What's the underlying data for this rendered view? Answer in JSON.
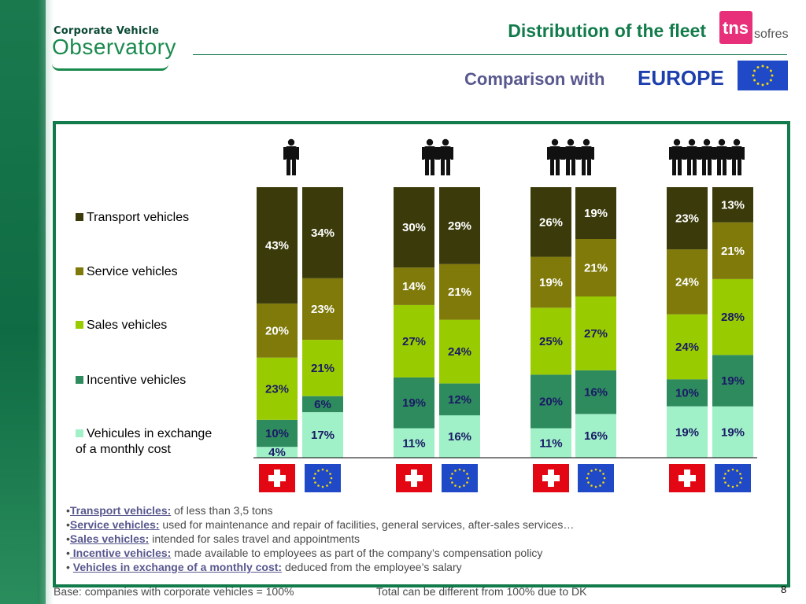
{
  "header": {
    "logo_line1": "Corporate Vehicle",
    "logo_line2": "Observatory",
    "title": "Distribution of the fleet",
    "brand_tns": "tns",
    "brand_sofres": "sofres",
    "comparison_label": "Comparison with",
    "comparison_region": "EUROPE"
  },
  "colors": {
    "transport": "#3a3a0a",
    "service": "#7f7a0a",
    "sales": "#99cc00",
    "incentive": "#2e8b5e",
    "exchange": "#a0f0c8",
    "green": "#127b4b"
  },
  "chart_data": {
    "type": "bar",
    "stacked": true,
    "groups": [
      "1 person icon",
      "2 person icons",
      "3 person icons",
      "5 person icons"
    ],
    "bars_per_group": [
      "Switzerland flag",
      "Europe flag"
    ],
    "series": [
      {
        "name": "Vehicules in exchange of a monthly cost",
        "key": "exchange",
        "values": [
          4,
          17,
          11,
          16,
          11,
          16,
          19,
          19
        ]
      },
      {
        "name": "Incentive vehicles",
        "key": "incentive",
        "values": [
          10,
          6,
          19,
          12,
          20,
          16,
          10,
          19
        ]
      },
      {
        "name": "Sales vehicles",
        "key": "sales",
        "values": [
          23,
          21,
          27,
          24,
          25,
          27,
          24,
          28
        ]
      },
      {
        "name": "Service vehicles",
        "key": "service",
        "values": [
          20,
          23,
          14,
          21,
          19,
          21,
          24,
          21
        ]
      },
      {
        "name": "Transport vehicles",
        "key": "transport",
        "values": [
          43,
          34,
          30,
          29,
          26,
          19,
          23,
          13
        ]
      }
    ],
    "value_labels": [
      [
        "4%",
        "17%",
        "11%",
        "16%",
        "11%",
        "16%",
        "19%",
        "19%"
      ],
      [
        "10%",
        "6%",
        "19%",
        "12%",
        "20%",
        "16%",
        "10%",
        "19%"
      ],
      [
        "23%",
        "21%",
        "27%",
        "24%",
        "25%",
        "27%",
        "24%",
        "28%"
      ],
      [
        "20%",
        "23%",
        "14%",
        "21%",
        "19%",
        "21%",
        "24%",
        "21%"
      ],
      [
        "43%",
        "34%",
        "30%",
        "29%",
        "26%",
        "19%",
        "23%",
        "13%"
      ]
    ],
    "legend_order": [
      "Transport vehicles",
      "Service vehicles",
      "Sales vehicles",
      "Incentive vehicles",
      "Vehicules in exchange of a monthly cost"
    ],
    "legend_placement": "left",
    "ylim": [
      0,
      100
    ],
    "grid": false
  },
  "legend": {
    "transport": "Transport vehicles",
    "service": "Service vehicles",
    "sales": "Sales vehicles",
    "incentive": "Incentive vehicles",
    "exchange_line1": "Vehicules in exchange",
    "exchange_line2": "of a monthly cost"
  },
  "notes": [
    {
      "term": "Transport vehicles:",
      "text": " of less than 3,5 tons",
      "prefix": "•"
    },
    {
      "term": "Service vehicles:",
      "text": " used for maintenance and repair of facilities, general services, after-sales services…",
      "prefix": "•"
    },
    {
      "term": "Sales vehicles:",
      "text": " intended for sales travel and appointments",
      "prefix": "•"
    },
    {
      "term": " Incentive vehicles:",
      "text": " made available to employees as part of the company’s compensation policy",
      "prefix": "•"
    },
    {
      "term": "Vehicles in exchange of a monthly cost:",
      "text": " deduced from the employee’s salary",
      "prefix": "• "
    }
  ],
  "footer": {
    "base": "Base: companies with corporate vehicles = 100%",
    "dk": "Total can be different from 100% due to DK",
    "page": "8"
  }
}
